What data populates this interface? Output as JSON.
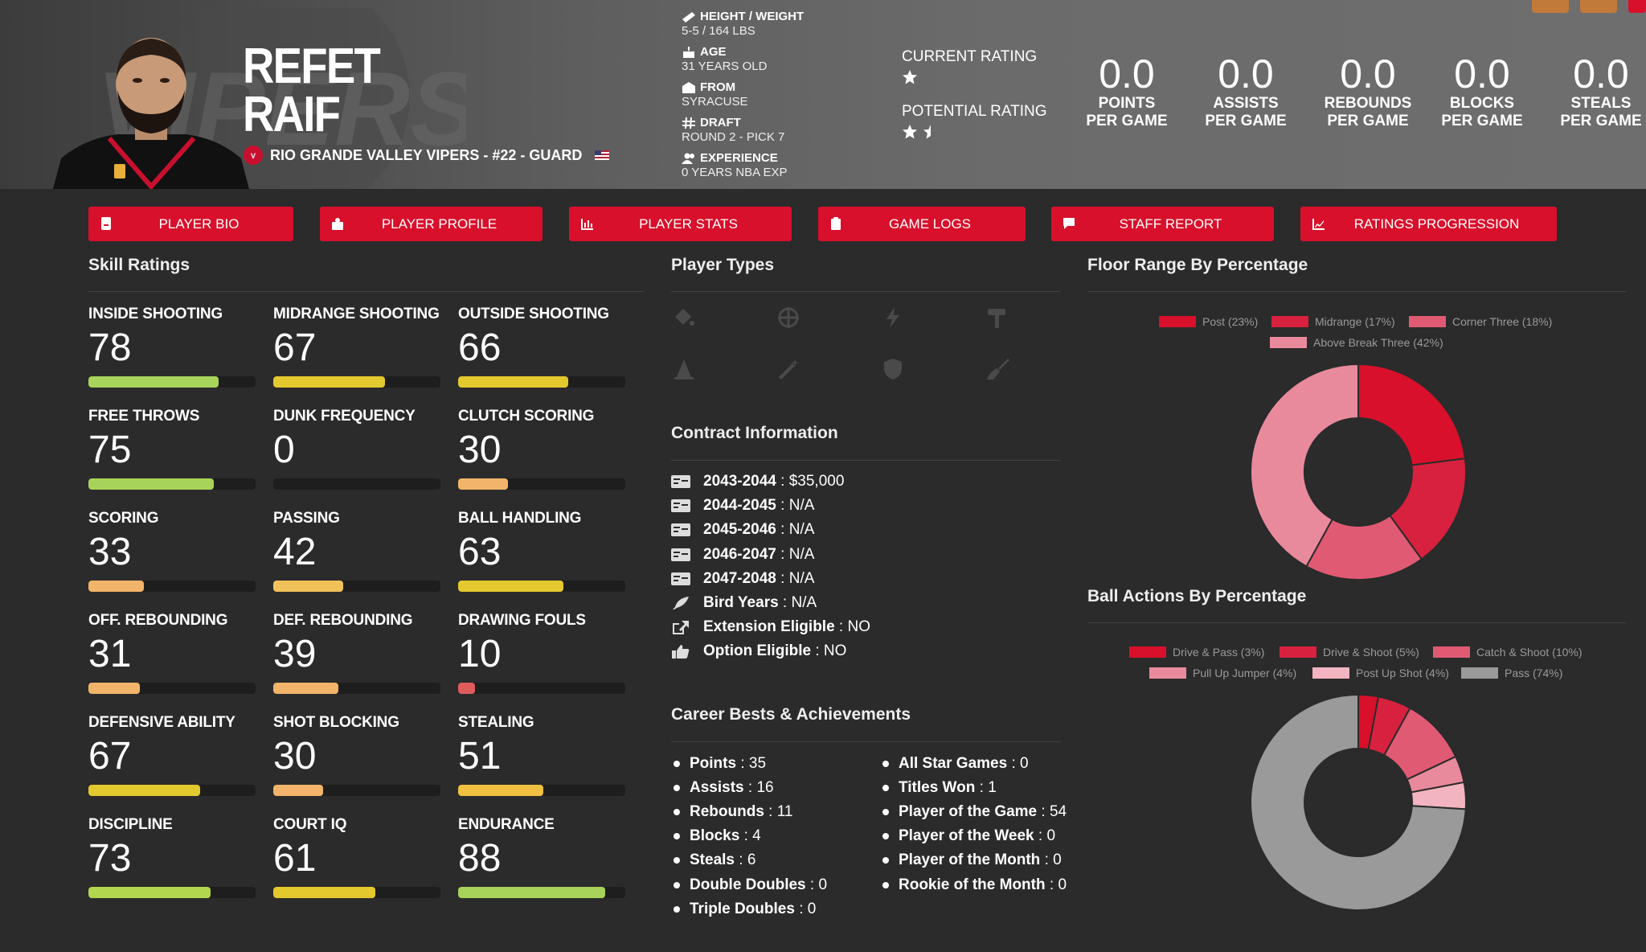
{
  "player": {
    "first_name": "REFET",
    "last_name": "RAIF",
    "team_line": "RIO GRANDE VALLEY VIPERS - #22 - GUARD"
  },
  "bio": [
    {
      "label": "HEIGHT / WEIGHT",
      "value": "5-5 / 164 LBS",
      "icon": "ruler-icon"
    },
    {
      "label": "AGE",
      "value": "31 YEARS OLD",
      "icon": "cake-icon"
    },
    {
      "label": "FROM",
      "value": "SYRACUSE",
      "icon": "school-icon"
    },
    {
      "label": "DRAFT",
      "value": "ROUND 2 - PICK 7",
      "icon": "hash-icon"
    },
    {
      "label": "EXPERIENCE",
      "value": "0 YEARS NBA EXP",
      "icon": "users-icon"
    }
  ],
  "ratings": {
    "current_label": "CURRENT RATING",
    "current_stars": 1,
    "potential_label": "POTENTIAL RATING",
    "potential_stars": 1.5
  },
  "stats": [
    {
      "value": "0.0",
      "label1": "POINTS",
      "label2": "PER GAME"
    },
    {
      "value": "0.0",
      "label1": "ASSISTS",
      "label2": "PER GAME"
    },
    {
      "value": "0.0",
      "label1": "REBOUNDS",
      "label2": "PER GAME"
    },
    {
      "value": "0.0",
      "label1": "BLOCKS",
      "label2": "PER GAME"
    },
    {
      "value": "0.0",
      "label1": "STEALS",
      "label2": "PER GAME"
    }
  ],
  "tabs": [
    {
      "label": "PLAYER BIO",
      "icon": "id-card-icon"
    },
    {
      "label": "PLAYER PROFILE",
      "icon": "profile-icon"
    },
    {
      "label": "PLAYER STATS",
      "icon": "bar-chart-icon"
    },
    {
      "label": "GAME LOGS",
      "icon": "clipboard-icon"
    },
    {
      "label": "STAFF REPORT",
      "icon": "comment-icon"
    },
    {
      "label": "RATINGS PROGRESSION",
      "icon": "line-chart-icon"
    }
  ],
  "skills_title": "Skill Ratings",
  "skills": [
    {
      "name": "INSIDE SHOOTING",
      "value": "78",
      "level": 78,
      "color": "#a8d35a"
    },
    {
      "name": "MIDRANGE SHOOTING",
      "value": "67",
      "level": 67,
      "color": "#e4c92e"
    },
    {
      "name": "OUTSIDE SHOOTING",
      "value": "66",
      "level": 66,
      "color": "#e4c92e"
    },
    {
      "name": "FREE THROWS",
      "value": "75",
      "level": 75,
      "color": "#a8d35a"
    },
    {
      "name": "DUNK FREQUENCY",
      "value": "0",
      "level": 0,
      "color": "#e05c5c"
    },
    {
      "name": "CLUTCH SCORING",
      "value": "30",
      "level": 30,
      "color": "#f2b46a"
    },
    {
      "name": "SCORING",
      "value": "33",
      "level": 33,
      "color": "#f2b46a"
    },
    {
      "name": "PASSING",
      "value": "42",
      "level": 42,
      "color": "#f2c25a"
    },
    {
      "name": "BALL HANDLING",
      "value": "63",
      "level": 63,
      "color": "#e4c92e"
    },
    {
      "name": "OFF. REBOUNDING",
      "value": "31",
      "level": 31,
      "color": "#f2b46a"
    },
    {
      "name": "DEF. REBOUNDING",
      "value": "39",
      "level": 39,
      "color": "#f2b46a"
    },
    {
      "name": "DRAWING FOULS",
      "value": "10",
      "level": 10,
      "color": "#e05c5c"
    },
    {
      "name": "DEFENSIVE ABILITY",
      "value": "67",
      "level": 67,
      "color": "#e4c92e"
    },
    {
      "name": "SHOT BLOCKING",
      "value": "30",
      "level": 30,
      "color": "#f2b46a"
    },
    {
      "name": "STEALING",
      "value": "51",
      "level": 51,
      "color": "#f0c040"
    },
    {
      "name": "DISCIPLINE",
      "value": "73",
      "level": 73,
      "color": "#b2d64e"
    },
    {
      "name": "COURT IQ",
      "value": "61",
      "level": 61,
      "color": "#e4c92e"
    },
    {
      "name": "ENDURANCE",
      "value": "88",
      "level": 88,
      "color": "#a8d35a"
    }
  ],
  "player_types_title": "Player Types",
  "player_types": [
    "paint-icon",
    "crosshair-icon",
    "lightning-icon",
    "hammer-icon",
    "cone-icon",
    "wand-icon",
    "shield-icon",
    "broom-icon"
  ],
  "contract_title": "Contract Information",
  "contract": [
    {
      "label": "2043-2044",
      "value": "$35,000",
      "icon": "money-icon"
    },
    {
      "label": "2044-2045",
      "value": "N/A",
      "icon": "money-icon"
    },
    {
      "label": "2045-2046",
      "value": "N/A",
      "icon": "money-icon"
    },
    {
      "label": "2046-2047",
      "value": "N/A",
      "icon": "money-icon"
    },
    {
      "label": "2047-2048",
      "value": "N/A",
      "icon": "money-icon"
    },
    {
      "label": "Bird Years",
      "value": "N/A",
      "icon": "feather-icon"
    },
    {
      "label": "Extension Eligible",
      "value": "NO",
      "icon": "external-link-icon"
    },
    {
      "label": "Option Eligible",
      "value": "NO",
      "icon": "thumbs-up-icon"
    }
  ],
  "career_title": "Career Bests & Achievements",
  "career_left": [
    {
      "label": "Points",
      "value": "35"
    },
    {
      "label": "Assists",
      "value": "16"
    },
    {
      "label": "Rebounds",
      "value": "11"
    },
    {
      "label": "Blocks",
      "value": "4"
    },
    {
      "label": "Steals",
      "value": "6"
    },
    {
      "label": "Double Doubles",
      "value": "0"
    },
    {
      "label": "Triple Doubles",
      "value": "0"
    }
  ],
  "career_right": [
    {
      "label": "All Star Games",
      "value": "0"
    },
    {
      "label": "Titles Won",
      "value": "1"
    },
    {
      "label": "Player of the Game",
      "value": "54"
    },
    {
      "label": "Player of the Week",
      "value": "0"
    },
    {
      "label": "Player of the Month",
      "value": "0"
    },
    {
      "label": "Rookie of the Month",
      "value": "0"
    }
  ],
  "chart_data": [
    {
      "type": "pie",
      "title": "Floor Range By Percentage",
      "categories": [
        "Post (23%)",
        "Midrange (17%)",
        "Corner Three (18%)",
        "Above Break Three (42%)"
      ],
      "values": [
        23,
        17,
        18,
        42
      ],
      "colors": [
        "#d8102b",
        "#d8213f",
        "#e05a73",
        "#e98a9c"
      ],
      "hole": 0.5
    },
    {
      "type": "pie",
      "title": "Ball Actions By Percentage",
      "categories": [
        "Drive & Pass (3%)",
        "Drive & Shoot (5%)",
        "Catch & Shoot (10%)",
        "Pull Up Jumper (4%)",
        "Post Up Shot (4%)",
        "Pass (74%)"
      ],
      "values": [
        3,
        5,
        10,
        4,
        4,
        74
      ],
      "colors": [
        "#d8102b",
        "#d8213f",
        "#e05a73",
        "#e98a9c",
        "#f2b4c0",
        "#9a9a9a"
      ],
      "hole": 0.5
    }
  ]
}
